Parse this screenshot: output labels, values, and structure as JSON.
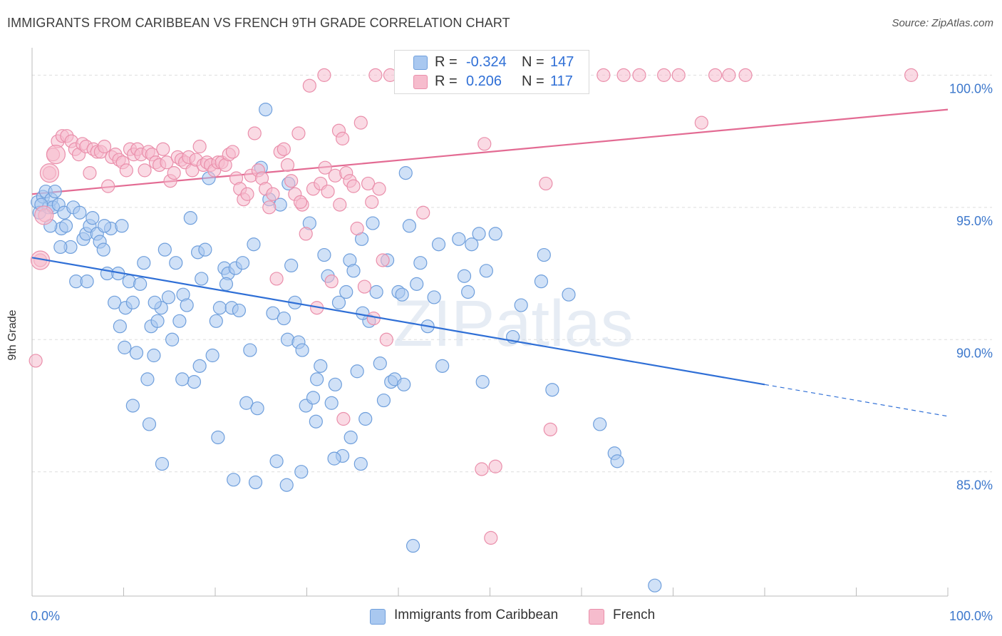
{
  "title": "IMMIGRANTS FROM CARIBBEAN VS FRENCH 9TH GRADE CORRELATION CHART",
  "source": "Source: ZipAtlas.com",
  "watermark": "ZIPatlas",
  "colors": {
    "blue_fill": "#a9c8f0",
    "blue_stroke": "#6f9fdc",
    "blue_line": "#2f6fd6",
    "pink_fill": "#f6bccd",
    "pink_stroke": "#ea8fab",
    "pink_line": "#e36b93",
    "axis_text": "#3d78cc",
    "grid": "#dddddd"
  },
  "stats": {
    "rows": [
      {
        "r_label": "R =",
        "r_value": "-0.324",
        "n_label": "N =",
        "n_value": "147",
        "color": "#a9c8f0"
      },
      {
        "r_label": "R =",
        "r_value": "0.206",
        "n_label": "N =",
        "n_value": "117",
        "color": "#f6bccd"
      }
    ]
  },
  "legend": {
    "items": [
      {
        "label": "Immigrants from Caribbean",
        "color": "#a9c8f0"
      },
      {
        "label": "French",
        "color": "#f6bccd"
      }
    ]
  },
  "chart_data": {
    "type": "scatter",
    "title": "IMMIGRANTS FROM CARIBBEAN VS FRENCH 9TH GRADE CORRELATION CHART",
    "xlabel": "",
    "ylabel": "9th Grade",
    "xlim": [
      0,
      100
    ],
    "ylim": [
      80.3,
      100.9
    ],
    "x_tick_labels": [
      "0.0%",
      "100.0%"
    ],
    "y_ticks": [
      85,
      90,
      95,
      100
    ],
    "y_tick_labels": [
      "85.0%",
      "90.0%",
      "95.0%",
      "100.0%"
    ],
    "grid": true,
    "series": [
      {
        "name": "Immigrants from Caribbean",
        "r": -0.324,
        "n": 147,
        "trend": {
          "x0": 0,
          "y0": 93.1,
          "x1": 80,
          "y1": 88.3,
          "dash_to_x": 100,
          "dash_to_y": 87.1
        },
        "points": [
          [
            0.6,
            95.2
          ],
          [
            0.8,
            94.8
          ],
          [
            1.2,
            95.4
          ],
          [
            1.5,
            95.6
          ],
          [
            1.8,
            95.0
          ],
          [
            2.1,
            95.3
          ],
          [
            2.3,
            95.0
          ],
          [
            2.5,
            95.6
          ],
          [
            2.9,
            95.1
          ],
          [
            3.2,
            94.2
          ],
          [
            3.5,
            94.8
          ],
          [
            3.7,
            94.3
          ],
          [
            4.2,
            93.5
          ],
          [
            4.5,
            95.0
          ],
          [
            4.8,
            92.2
          ],
          [
            5.2,
            94.8
          ],
          [
            5.6,
            93.8
          ],
          [
            5.9,
            94.0
          ],
          [
            6.3,
            94.3
          ],
          [
            6.6,
            94.6
          ],
          [
            7.1,
            94.0
          ],
          [
            7.4,
            93.7
          ],
          [
            7.8,
            93.4
          ],
          [
            8.2,
            92.5
          ],
          [
            8.6,
            94.2
          ],
          [
            9.0,
            91.4
          ],
          [
            9.4,
            92.5
          ],
          [
            9.8,
            94.3
          ],
          [
            10.2,
            91.2
          ],
          [
            10.6,
            92.2
          ],
          [
            11.0,
            91.4
          ],
          [
            11.4,
            89.5
          ],
          [
            11.8,
            92.1
          ],
          [
            12.2,
            92.9
          ],
          [
            12.6,
            88.5
          ],
          [
            13.0,
            90.5
          ],
          [
            13.3,
            89.4
          ],
          [
            13.7,
            90.7
          ],
          [
            14.1,
            91.2
          ],
          [
            14.5,
            93.4
          ],
          [
            14.9,
            91.6
          ],
          [
            15.3,
            90.0
          ],
          [
            15.7,
            92.9
          ],
          [
            16.1,
            90.7
          ],
          [
            16.5,
            91.7
          ],
          [
            16.9,
            91.3
          ],
          [
            17.3,
            94.6
          ],
          [
            17.7,
            88.4
          ],
          [
            18.1,
            93.3
          ],
          [
            18.5,
            92.3
          ],
          [
            18.9,
            93.4
          ],
          [
            19.3,
            96.1
          ],
          [
            19.7,
            89.4
          ],
          [
            20.1,
            90.7
          ],
          [
            20.5,
            91.2
          ],
          [
            21.0,
            92.7
          ],
          [
            21.4,
            92.5
          ],
          [
            21.8,
            91.2
          ],
          [
            22.2,
            92.7
          ],
          [
            22.6,
            91.1
          ],
          [
            23.0,
            92.9
          ],
          [
            23.4,
            87.6
          ],
          [
            23.8,
            89.6
          ],
          [
            24.2,
            93.6
          ],
          [
            24.6,
            87.4
          ],
          [
            25.0,
            96.5
          ],
          [
            25.5,
            98.7
          ],
          [
            25.9,
            95.3
          ],
          [
            26.3,
            91.0
          ],
          [
            26.7,
            85.4
          ],
          [
            27.1,
            95.1
          ],
          [
            27.5,
            90.8
          ],
          [
            27.9,
            90.0
          ],
          [
            28.3,
            92.8
          ],
          [
            28.7,
            91.4
          ],
          [
            29.1,
            89.9
          ],
          [
            29.5,
            89.6
          ],
          [
            29.9,
            87.5
          ],
          [
            30.3,
            94.4
          ],
          [
            30.7,
            87.8
          ],
          [
            31.1,
            88.5
          ],
          [
            31.5,
            89.0
          ],
          [
            31.9,
            93.2
          ],
          [
            32.3,
            92.4
          ],
          [
            32.7,
            87.6
          ],
          [
            33.1,
            88.3
          ],
          [
            33.5,
            91.4
          ],
          [
            33.9,
            85.6
          ],
          [
            34.3,
            91.8
          ],
          [
            34.7,
            93.0
          ],
          [
            35.1,
            92.6
          ],
          [
            35.5,
            88.8
          ],
          [
            36.0,
            93.8
          ],
          [
            36.4,
            87.0
          ],
          [
            36.8,
            90.7
          ],
          [
            37.2,
            94.4
          ],
          [
            37.6,
            91.8
          ],
          [
            38.0,
            89.1
          ],
          [
            38.4,
            87.7
          ],
          [
            38.8,
            93.0
          ],
          [
            39.2,
            88.4
          ],
          [
            39.6,
            88.5
          ],
          [
            40.0,
            91.8
          ],
          [
            40.4,
            91.7
          ],
          [
            40.8,
            96.3
          ],
          [
            41.2,
            94.3
          ],
          [
            41.6,
            82.2
          ],
          [
            42.0,
            92.1
          ],
          [
            42.4,
            92.9
          ],
          [
            43.2,
            90.5
          ],
          [
            44.4,
            93.6
          ],
          [
            46.6,
            93.8
          ],
          [
            47.2,
            92.4
          ],
          [
            47.6,
            91.8
          ],
          [
            48.0,
            93.6
          ],
          [
            48.8,
            94.0
          ],
          [
            49.2,
            88.4
          ],
          [
            49.6,
            92.6
          ],
          [
            50.6,
            94.0
          ],
          [
            52.5,
            90.1
          ],
          [
            53.4,
            91.3
          ],
          [
            55.6,
            92.2
          ],
          [
            55.9,
            93.2
          ],
          [
            56.8,
            88.1
          ],
          [
            58.6,
            91.7
          ],
          [
            62.0,
            86.8
          ],
          [
            63.6,
            85.7
          ],
          [
            63.9,
            85.4
          ],
          [
            68.0,
            80.7
          ],
          [
            14.2,
            85.3
          ],
          [
            1.0,
            95.1
          ],
          [
            2.0,
            94.3
          ],
          [
            3.1,
            93.5
          ],
          [
            6.0,
            92.2
          ],
          [
            7.9,
            94.3
          ],
          [
            10.1,
            89.7
          ],
          [
            12.8,
            86.8
          ],
          [
            16.4,
            88.5
          ],
          [
            20.3,
            86.3
          ],
          [
            22.0,
            84.7
          ],
          [
            24.4,
            84.6
          ],
          [
            27.8,
            84.5
          ],
          [
            29.4,
            85.0
          ],
          [
            31.0,
            86.9
          ],
          [
            33.0,
            85.5
          ],
          [
            34.8,
            86.3
          ],
          [
            35.9,
            85.3
          ],
          [
            40.6,
            88.3
          ],
          [
            44.8,
            89.0
          ],
          [
            28.0,
            95.9
          ],
          [
            9.6,
            90.5
          ],
          [
            13.4,
            91.4
          ],
          [
            18.3,
            89.0
          ],
          [
            36.1,
            91.0
          ],
          [
            43.9,
            91.6
          ],
          [
            11.0,
            87.5
          ],
          [
            21.2,
            92.1
          ]
        ]
      },
      {
        "name": "French",
        "r": 0.206,
        "n": 117,
        "trend": {
          "x0": 0,
          "y0": 95.5,
          "x1": 100,
          "y1": 98.7
        },
        "points": [
          [
            0.4,
            89.2
          ],
          [
            0.9,
            93.0
          ],
          [
            1.4,
            94.7
          ],
          [
            1.9,
            96.3
          ],
          [
            2.3,
            97.0
          ],
          [
            2.8,
            97.5
          ],
          [
            3.3,
            97.7
          ],
          [
            3.8,
            97.7
          ],
          [
            4.3,
            97.5
          ],
          [
            4.7,
            97.2
          ],
          [
            5.1,
            97.0
          ],
          [
            5.5,
            97.4
          ],
          [
            5.9,
            97.3
          ],
          [
            6.3,
            96.3
          ],
          [
            6.7,
            97.2
          ],
          [
            7.1,
            97.1
          ],
          [
            7.5,
            97.1
          ],
          [
            7.9,
            97.3
          ],
          [
            8.3,
            95.8
          ],
          [
            8.7,
            96.9
          ],
          [
            9.1,
            97.0
          ],
          [
            9.5,
            96.8
          ],
          [
            9.9,
            96.7
          ],
          [
            10.3,
            96.4
          ],
          [
            10.7,
            97.2
          ],
          [
            11.1,
            97.0
          ],
          [
            11.5,
            97.2
          ],
          [
            11.9,
            97.0
          ],
          [
            12.3,
            96.4
          ],
          [
            12.7,
            97.1
          ],
          [
            13.1,
            97.0
          ],
          [
            13.5,
            96.7
          ],
          [
            13.9,
            96.6
          ],
          [
            14.3,
            97.2
          ],
          [
            14.7,
            96.7
          ],
          [
            15.1,
            96.0
          ],
          [
            15.5,
            96.3
          ],
          [
            15.9,
            96.9
          ],
          [
            16.3,
            96.8
          ],
          [
            16.7,
            96.7
          ],
          [
            17.1,
            96.9
          ],
          [
            17.5,
            96.4
          ],
          [
            17.9,
            96.8
          ],
          [
            18.3,
            97.3
          ],
          [
            18.7,
            96.6
          ],
          [
            19.1,
            96.7
          ],
          [
            19.5,
            96.6
          ],
          [
            19.9,
            96.4
          ],
          [
            20.3,
            96.7
          ],
          [
            20.7,
            96.7
          ],
          [
            21.1,
            96.6
          ],
          [
            21.5,
            97.0
          ],
          [
            21.9,
            97.1
          ],
          [
            22.3,
            96.1
          ],
          [
            22.7,
            95.7
          ],
          [
            23.1,
            95.3
          ],
          [
            23.5,
            95.5
          ],
          [
            23.9,
            96.2
          ],
          [
            24.3,
            97.8
          ],
          [
            24.7,
            96.4
          ],
          [
            25.1,
            96.1
          ],
          [
            25.5,
            95.7
          ],
          [
            25.9,
            95.0
          ],
          [
            26.3,
            95.5
          ],
          [
            26.7,
            92.3
          ],
          [
            27.1,
            97.1
          ],
          [
            27.5,
            97.2
          ],
          [
            27.9,
            96.6
          ],
          [
            28.3,
            96.0
          ],
          [
            28.7,
            95.5
          ],
          [
            29.1,
            97.8
          ],
          [
            29.5,
            95.1
          ],
          [
            29.9,
            94.0
          ],
          [
            30.3,
            99.6
          ],
          [
            30.7,
            95.7
          ],
          [
            31.1,
            91.2
          ],
          [
            31.5,
            95.9
          ],
          [
            31.9,
            100.0
          ],
          [
            32.3,
            95.6
          ],
          [
            32.7,
            92.2
          ],
          [
            33.1,
            96.2
          ],
          [
            33.5,
            97.9
          ],
          [
            33.9,
            97.6
          ],
          [
            34.3,
            96.3
          ],
          [
            34.7,
            96.0
          ],
          [
            35.1,
            95.8
          ],
          [
            35.5,
            94.2
          ],
          [
            35.9,
            98.2
          ],
          [
            36.3,
            92.0
          ],
          [
            36.7,
            95.9
          ],
          [
            37.1,
            95.2
          ],
          [
            37.5,
            100.0
          ],
          [
            37.9,
            95.7
          ],
          [
            38.3,
            93.0
          ],
          [
            38.7,
            90.0
          ],
          [
            39.1,
            100.0
          ],
          [
            41.0,
            100.0
          ],
          [
            43.2,
            100.0
          ],
          [
            44.6,
            100.0
          ],
          [
            45.7,
            100.0
          ],
          [
            48.1,
            100.0
          ],
          [
            50.1,
            100.0
          ],
          [
            50.3,
            100.0
          ],
          [
            56.8,
            100.0
          ],
          [
            59.9,
            100.0
          ],
          [
            62.4,
            100.0
          ],
          [
            64.6,
            100.0
          ],
          [
            66.3,
            100.0
          ],
          [
            69.0,
            100.0
          ],
          [
            70.6,
            100.0
          ],
          [
            74.6,
            100.0
          ],
          [
            76.1,
            100.0
          ],
          [
            77.9,
            100.0
          ],
          [
            96.0,
            100.0
          ],
          [
            56.1,
            95.9
          ],
          [
            56.6,
            86.6
          ],
          [
            49.1,
            85.1
          ],
          [
            50.6,
            85.2
          ],
          [
            50.1,
            82.5
          ],
          [
            34.0,
            87.0
          ],
          [
            49.4,
            97.4
          ],
          [
            73.1,
            98.2
          ],
          [
            37.3,
            90.8
          ],
          [
            32.0,
            96.5
          ],
          [
            29.3,
            95.2
          ],
          [
            33.6,
            95.1
          ],
          [
            42.7,
            94.8
          ]
        ]
      }
    ]
  }
}
